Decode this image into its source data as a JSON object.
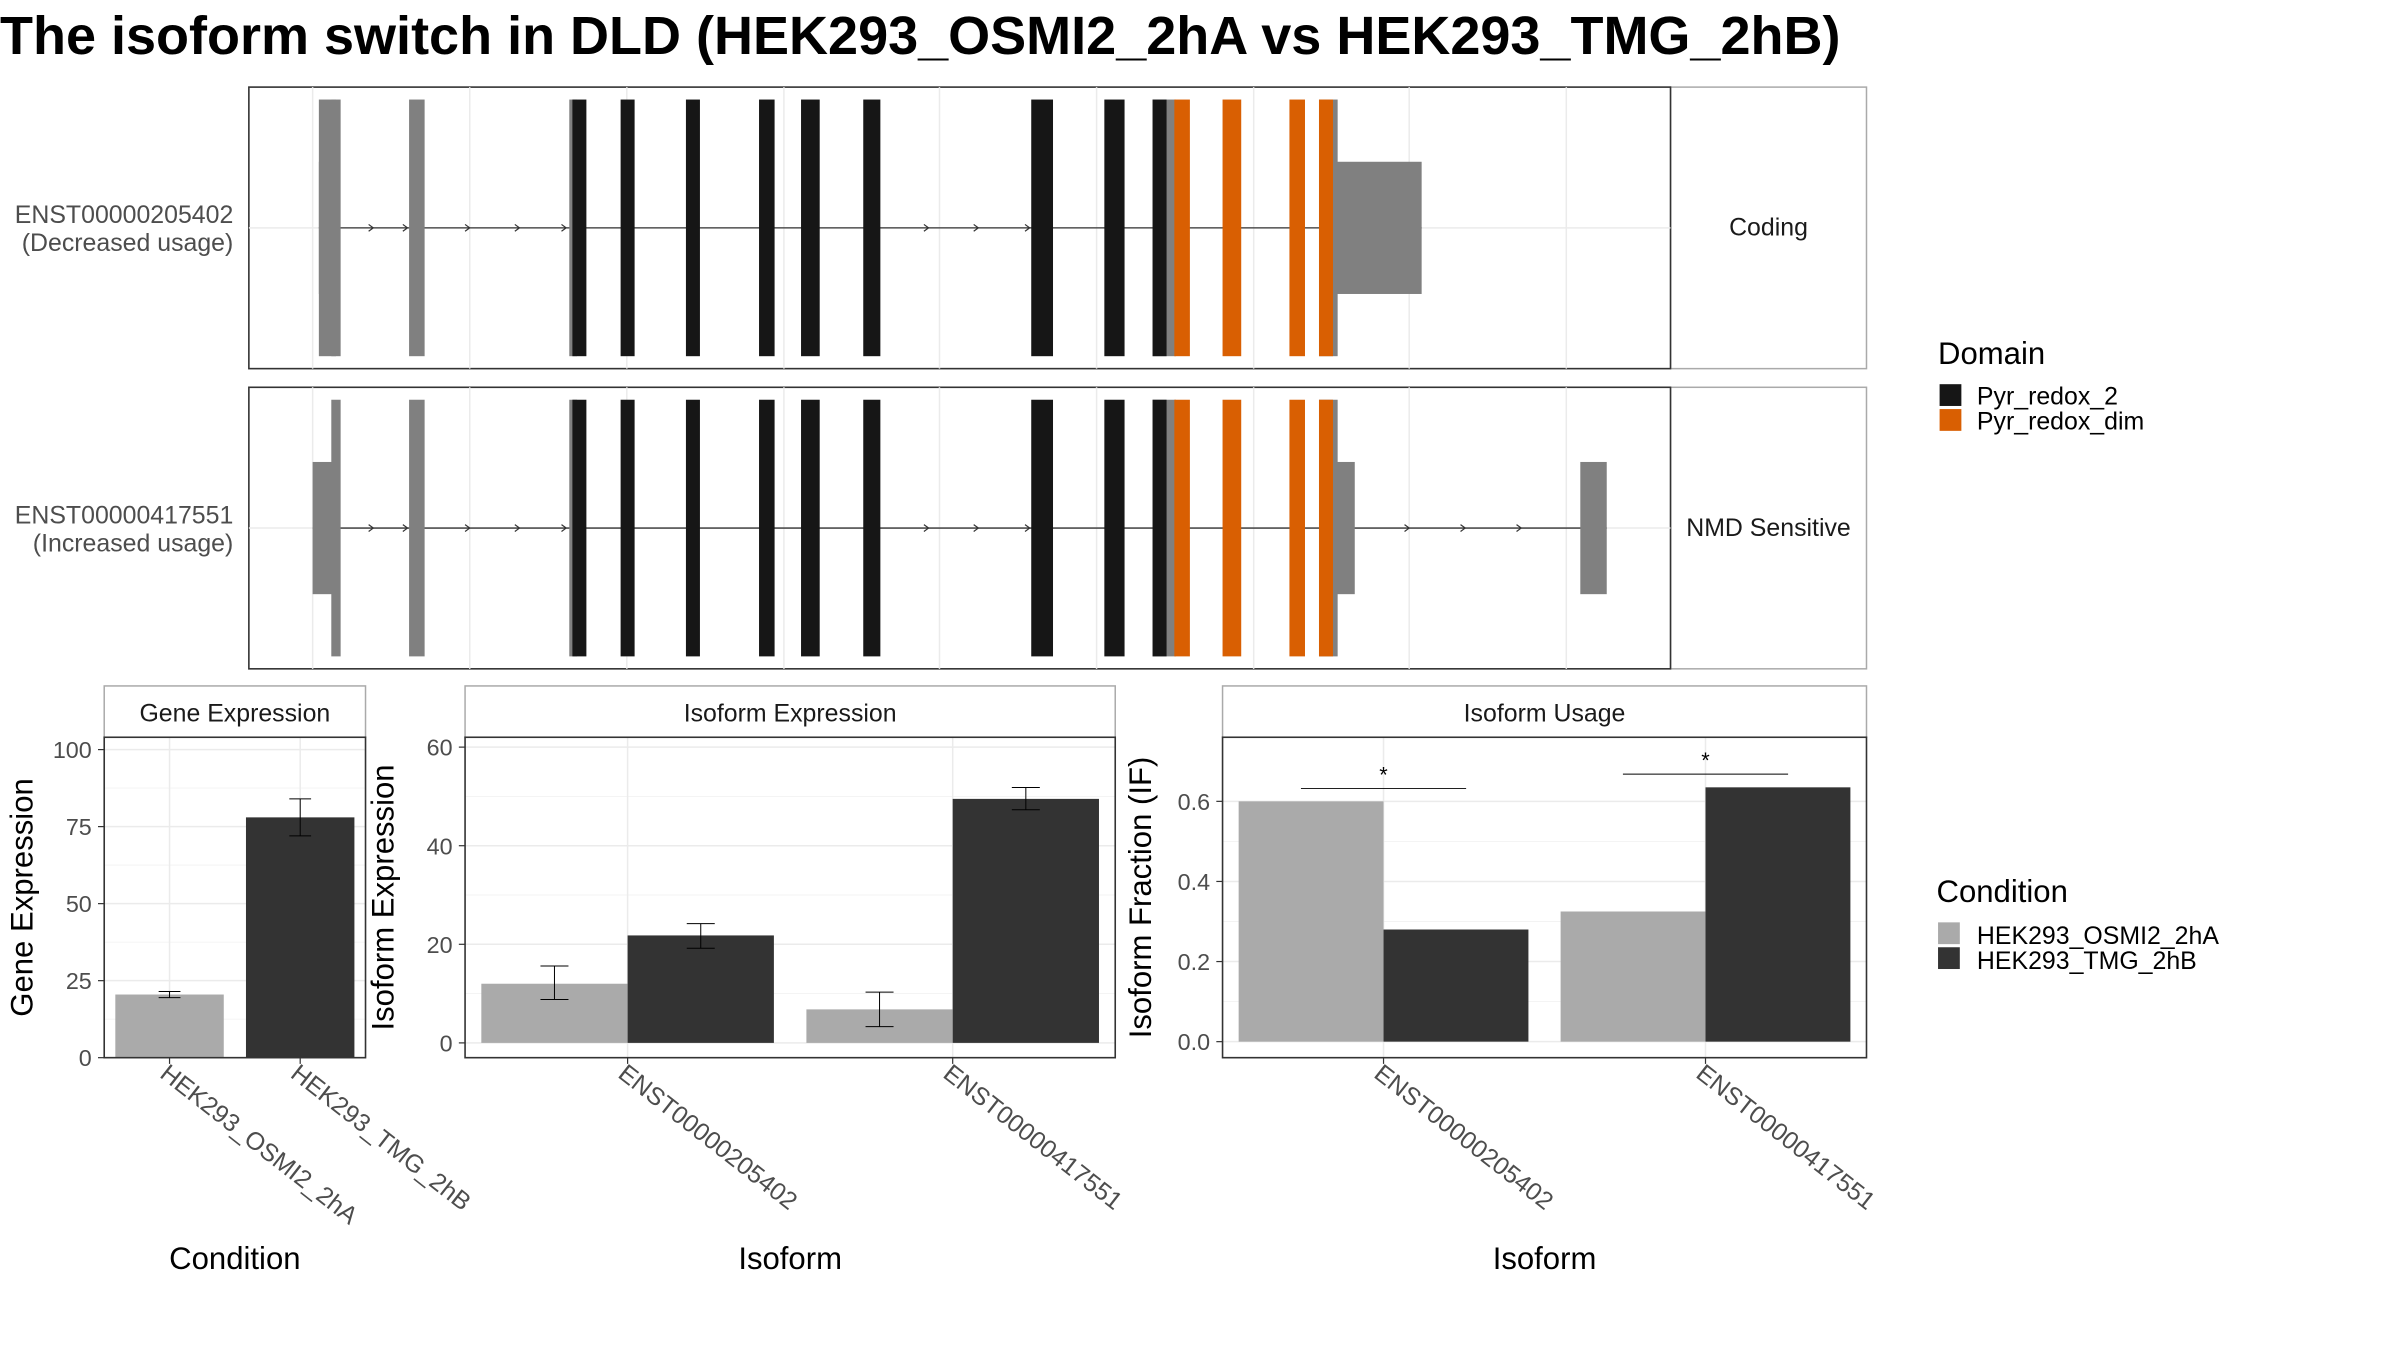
{
  "title": "The isoform switch in DLD (HEK293_OSMI2_2hA vs HEK293_TMG_2hB)",
  "colors": {
    "utr": "#808080",
    "intron": "#333333",
    "domain_pyr_redox_2": "#161616",
    "domain_pyr_redox_dim": "#d95f02",
    "cond_a": "#aaaaaa",
    "cond_b": "#333333",
    "panel_border": "#333333",
    "strip_border": "#aaaaaa",
    "grid": "#ebebeb",
    "axis_text": "#4d4d4d"
  },
  "transcripts": [
    {
      "id": "ENST00000205402",
      "label_line1": "ENST00000205402",
      "label_line2": "(Decreased usage)",
      "category": "Coding",
      "utr_exons": [
        [
          205,
          216
        ],
        [
          213,
          219
        ],
        [
          263,
          273
        ],
        [
          366,
          371
        ],
        [
          741,
          756
        ],
        [
          848,
          860
        ]
      ],
      "thick_utr": [
        [
          858,
          914
        ]
      ],
      "domain1_exons": [
        [
          368,
          377
        ],
        [
          399,
          408
        ],
        [
          441,
          450
        ],
        [
          488,
          498
        ],
        [
          515,
          527
        ],
        [
          555,
          566
        ],
        [
          663,
          677
        ],
        [
          710,
          723
        ],
        [
          741,
          750
        ]
      ],
      "domain2_exons": [
        [
          755,
          765
        ],
        [
          786,
          798
        ],
        [
          829,
          839
        ],
        [
          848,
          857
        ]
      ],
      "utr_short": [
        [
          205,
          216
        ]
      ],
      "arrows": [
        240,
        262,
        302,
        334,
        364,
        597,
        629,
        662
      ],
      "intron_range": [
        205,
        914
      ]
    },
    {
      "id": "ENST00000417551",
      "label_line1": "ENST00000417551",
      "label_line2": "(Increased usage)",
      "category": "NMD Sensitive",
      "utr_exons": [
        [
          213,
          219
        ],
        [
          263,
          273
        ],
        [
          366,
          371
        ],
        [
          741,
          756
        ],
        [
          848,
          860
        ]
      ],
      "thick_utr": [
        [
          858,
          871
        ],
        [
          1016,
          1033
        ]
      ],
      "domain1_exons": [
        [
          368,
          377
        ],
        [
          399,
          408
        ],
        [
          441,
          450
        ],
        [
          488,
          498
        ],
        [
          515,
          527
        ],
        [
          555,
          566
        ],
        [
          663,
          677
        ],
        [
          710,
          723
        ],
        [
          741,
          750
        ]
      ],
      "domain2_exons": [
        [
          755,
          765
        ],
        [
          786,
          798
        ],
        [
          829,
          839
        ],
        [
          848,
          857
        ]
      ],
      "utr_short": [
        [
          201,
          216
        ]
      ],
      "arrows": [
        240,
        262,
        302,
        334,
        364,
        597,
        629,
        662,
        906,
        942,
        978
      ],
      "intron_range": [
        201,
        1033
      ]
    }
  ],
  "domain_legend": {
    "title": "Domain",
    "items": [
      "Pyr_redox_2",
      "Pyr_redox_dim"
    ]
  },
  "condition_legend": {
    "title": "Condition",
    "items": [
      "HEK293_OSMI2_2hA",
      "HEK293_TMG_2hB"
    ]
  },
  "chart_data": [
    {
      "type": "bar",
      "title": "Gene Expression",
      "xlabel": "Condition",
      "ylabel": "Gene Expression",
      "categories": [
        "HEK293_OSMI2_2hA",
        "HEK293_TMG_2hB"
      ],
      "values": [
        20.5,
        78.0
      ],
      "error": [
        [
          19.5,
          21.5
        ],
        [
          72.0,
          84.0
        ]
      ],
      "ylim": [
        0,
        104
      ],
      "yticks": [
        0,
        25,
        50,
        75,
        100
      ]
    },
    {
      "type": "bar",
      "title": "Isoform Expression",
      "xlabel": "Isoform",
      "ylabel": "Isoform Expression",
      "categories": [
        "ENST00000205402",
        "ENST00000417551"
      ],
      "series": [
        {
          "name": "HEK293_OSMI2_2hA",
          "values": [
            12.0,
            6.8
          ],
          "error": [
            [
              8.8,
              15.6
            ],
            [
              3.3,
              10.3
            ]
          ]
        },
        {
          "name": "HEK293_TMG_2hB",
          "values": [
            21.8,
            49.5
          ],
          "error": [
            [
              19.2,
              24.2
            ],
            [
              47.3,
              51.8
            ]
          ]
        }
      ],
      "ylim": [
        -3,
        62
      ],
      "yticks": [
        0,
        20,
        40,
        60
      ]
    },
    {
      "type": "bar",
      "title": "Isoform Usage",
      "xlabel": "Isoform",
      "ylabel": "Isoform Fraction (IF)",
      "categories": [
        "ENST00000205402",
        "ENST00000417551"
      ],
      "series": [
        {
          "name": "HEK293_OSMI2_2hA",
          "values": [
            0.6,
            0.325
          ]
        },
        {
          "name": "HEK293_TMG_2hB",
          "values": [
            0.28,
            0.635
          ]
        }
      ],
      "significance": [
        {
          "label": "*",
          "y": 0.632
        },
        {
          "label": "*",
          "y": 0.668
        }
      ],
      "ylim": [
        -0.04,
        0.76
      ],
      "yticks": [
        "0.0",
        "0.2",
        "0.4",
        "0.6"
      ]
    }
  ]
}
